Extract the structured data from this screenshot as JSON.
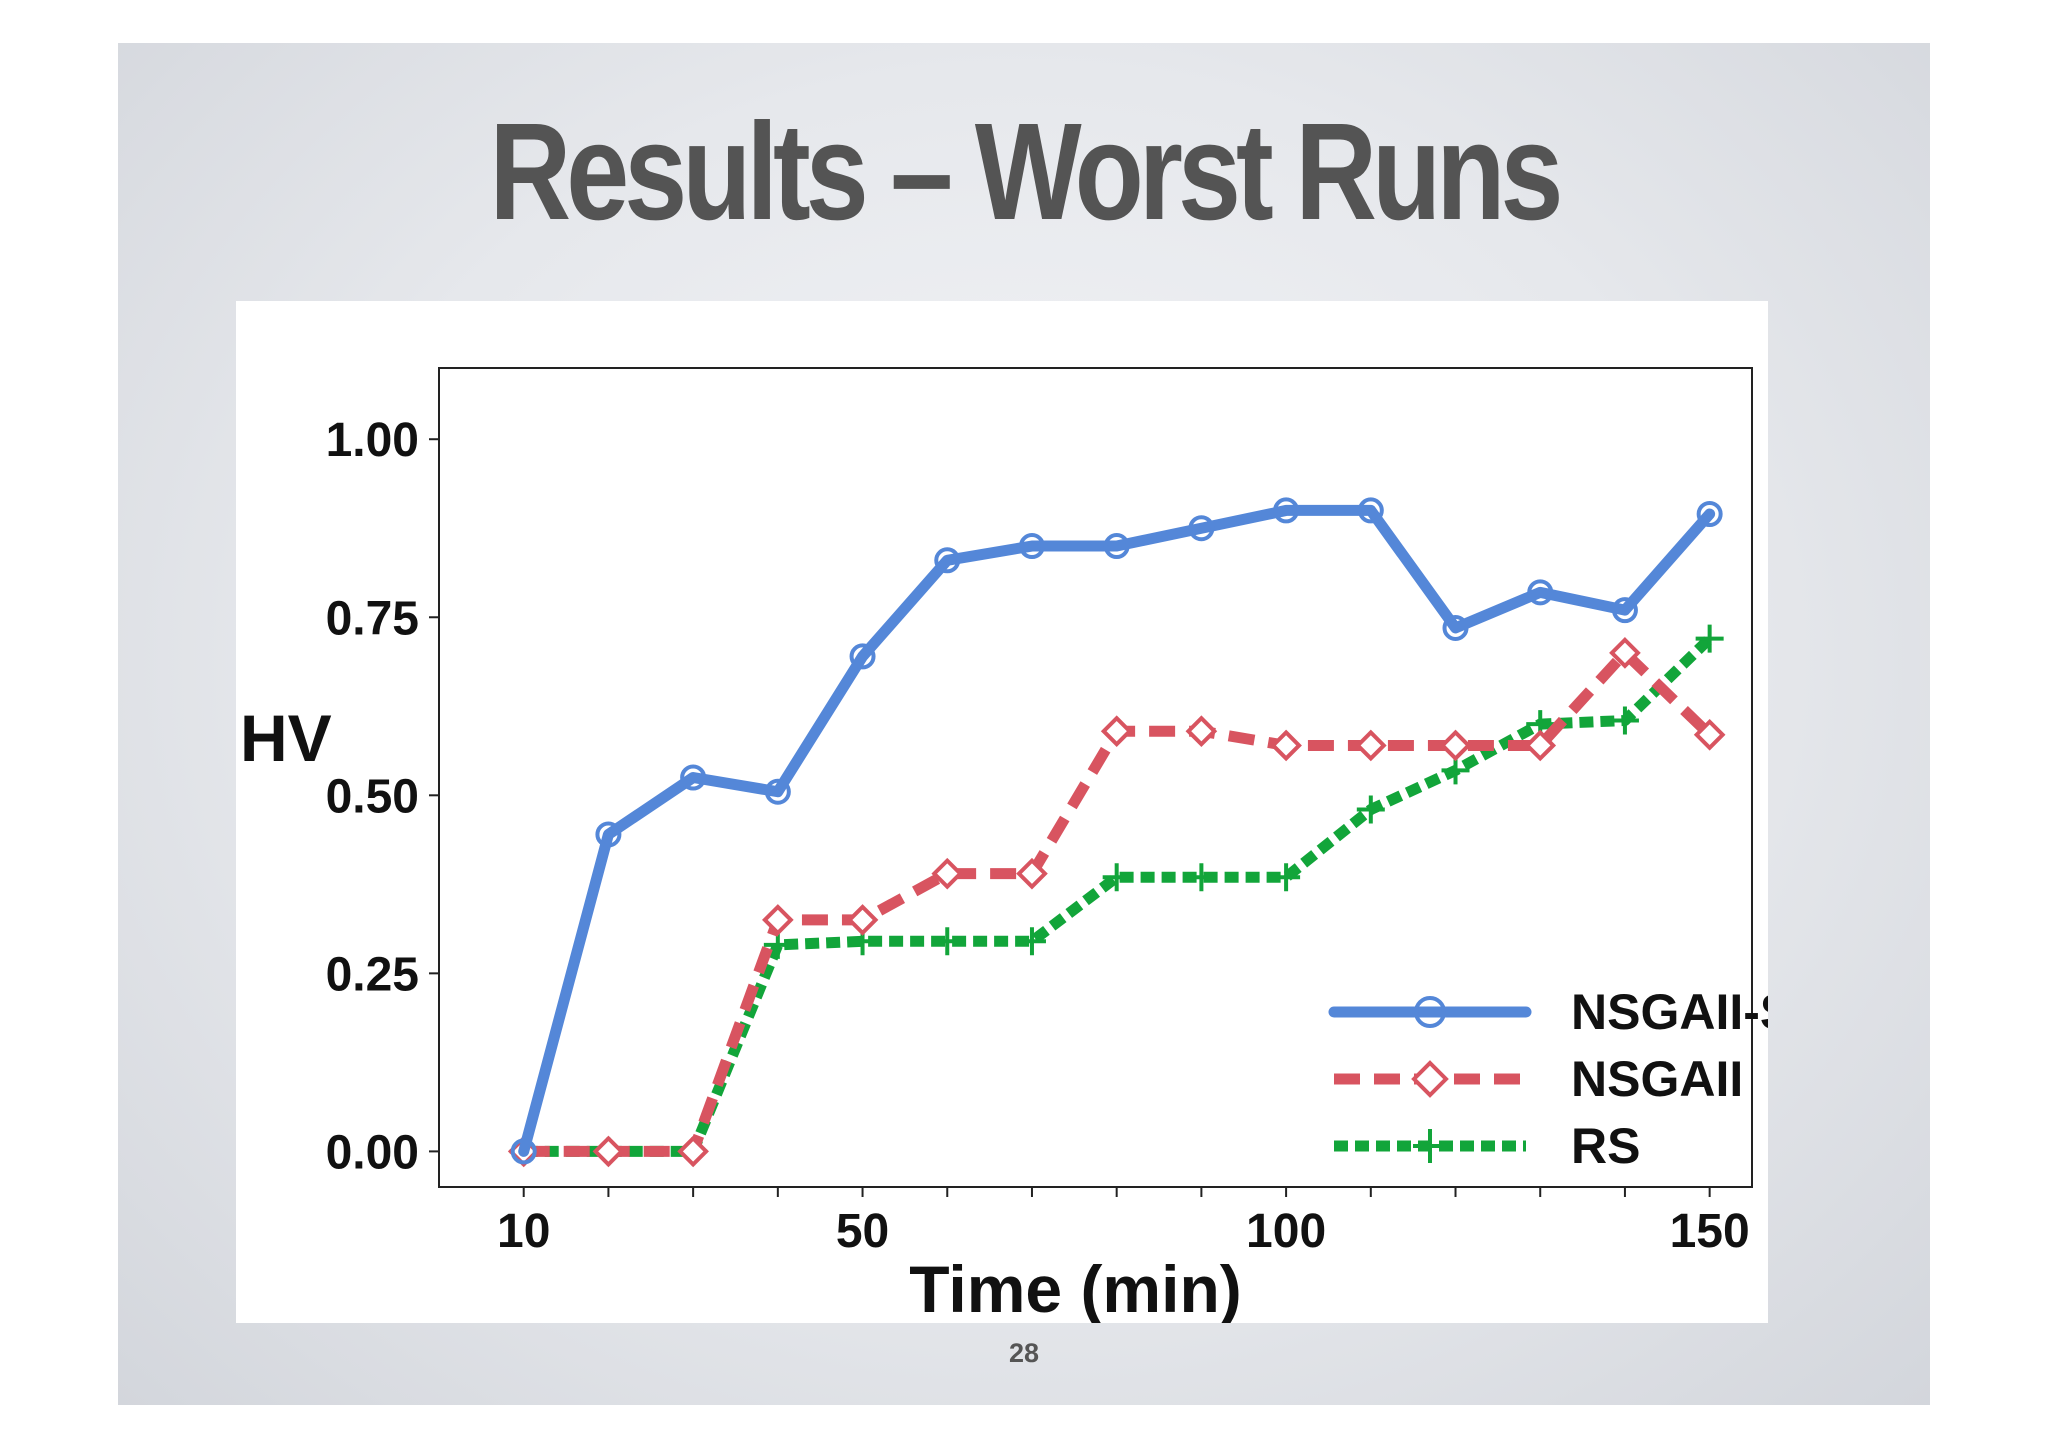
{
  "slide": {
    "title": "Results – Worst Runs",
    "page_number": "28"
  },
  "chart_data": {
    "type": "line",
    "title": "",
    "xlabel": "Time (min)",
    "ylabel": "HV",
    "xlim": [
      0,
      155
    ],
    "ylim": [
      -0.05,
      1.1
    ],
    "xticks": [
      10,
      20,
      30,
      40,
      50,
      60,
      70,
      80,
      90,
      100,
      110,
      120,
      130,
      140,
      150
    ],
    "xtick_labels": [
      "10",
      "",
      "",
      "",
      "50",
      "",
      "",
      "",
      "",
      "100",
      "",
      "",
      "",
      "",
      "150"
    ],
    "yticks": [
      0.0,
      0.25,
      0.5,
      0.75,
      1.0
    ],
    "ytick_labels": [
      "0.00",
      "0.25",
      "0.50",
      "0.75",
      "1.00"
    ],
    "grid": false,
    "legend_position": "bottom-right",
    "x": [
      10,
      20,
      30,
      40,
      50,
      60,
      70,
      80,
      90,
      100,
      110,
      120,
      130,
      140,
      150
    ],
    "series": [
      {
        "name": "NSGAII-SM",
        "color": "#5487d8",
        "line_style": "solid",
        "marker": "circle",
        "values": [
          0.0,
          0.445,
          0.525,
          0.505,
          0.695,
          0.83,
          0.85,
          0.85,
          0.875,
          0.9,
          0.9,
          0.735,
          0.785,
          0.76,
          0.895
        ]
      },
      {
        "name": "NSGAII",
        "color": "#d85460",
        "line_style": "dashed",
        "marker": "diamond",
        "values": [
          0.0,
          0.0,
          0.0,
          0.325,
          0.325,
          0.39,
          0.39,
          0.59,
          0.59,
          0.57,
          0.57,
          0.57,
          0.57,
          0.7,
          0.585
        ]
      },
      {
        "name": "RS",
        "color": "#12a53a",
        "line_style": "dotted",
        "marker": "plus",
        "values": [
          0.0,
          0.0,
          0.0,
          0.29,
          0.295,
          0.295,
          0.295,
          0.385,
          0.385,
          0.385,
          0.48,
          0.535,
          0.6,
          0.605,
          0.72
        ]
      }
    ]
  }
}
